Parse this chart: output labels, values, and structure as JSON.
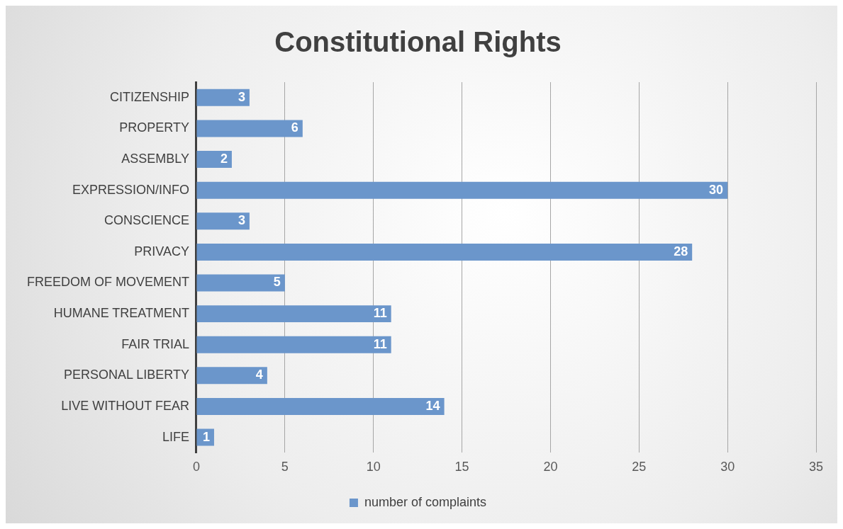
{
  "chart_data": {
    "type": "bar",
    "orientation": "horizontal",
    "title": "Constitutional Rights",
    "categories": [
      "CITIZENSHIP",
      "PROPERTY",
      "ASSEMBLY",
      "EXPRESSION/INFO",
      "CONSCIENCE",
      "PRIVACY",
      "FREEDOM OF MOVEMENT",
      "HUMANE TREATMENT",
      "FAIR TRIAL",
      "PERSONAL LIBERTY",
      "LIVE WITHOUT FEAR",
      "LIFE"
    ],
    "series": [
      {
        "name": "number of complaints",
        "color": "#6b96cb",
        "values": [
          3,
          6,
          2,
          30,
          3,
          28,
          5,
          11,
          11,
          4,
          14,
          1
        ]
      }
    ],
    "xlim": [
      0,
      35
    ],
    "xticks": [
      0,
      5,
      10,
      15,
      20,
      25,
      30,
      35
    ],
    "grid": "x",
    "legend": "bottom",
    "data_labels": true
  }
}
